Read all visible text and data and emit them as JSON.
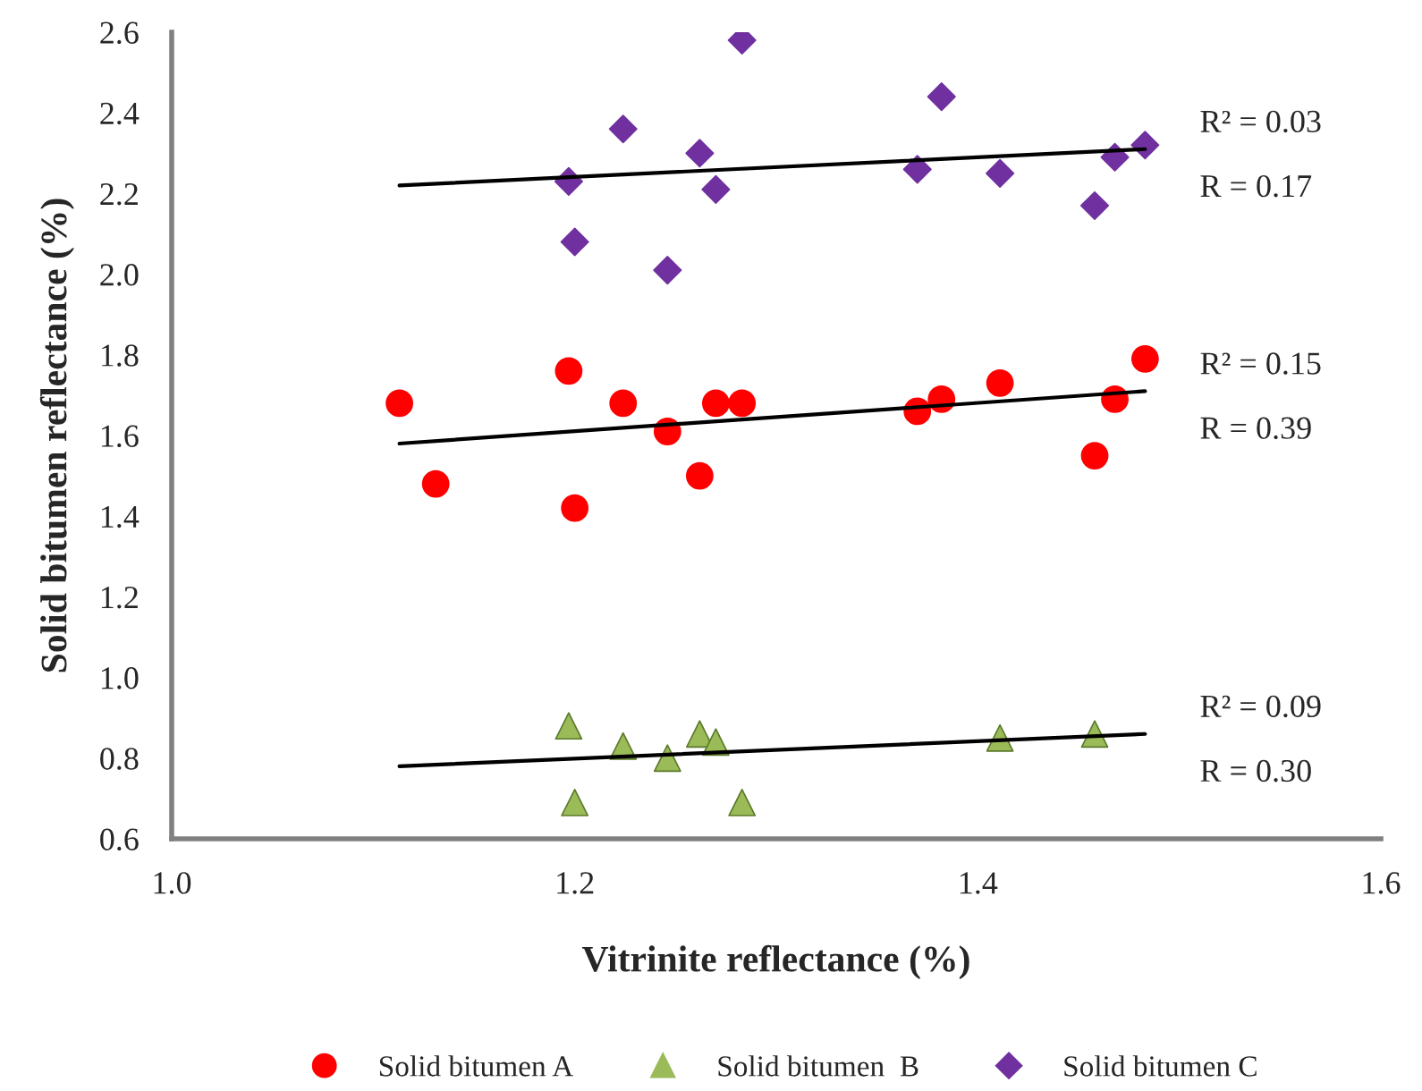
{
  "chart_data": {
    "type": "scatter",
    "xlabel": "Vitrinite reflectance (%)",
    "ylabel": "Solid bitumen reflectance (%)",
    "xlim": [
      1.0,
      1.6
    ],
    "xticks": [
      {
        "value": 1.0,
        "label": "1.0"
      },
      {
        "value": 1.2,
        "label": "1.2"
      },
      {
        "value": 1.4,
        "label": "1.4"
      },
      {
        "value": 1.6,
        "label": "1.6"
      }
    ],
    "ylim": [
      0.6,
      2.6
    ],
    "yticks": [
      {
        "value": 0.6,
        "label": "0.6"
      },
      {
        "value": 0.8,
        "label": "0.8"
      },
      {
        "value": 1.0,
        "label": "1.0"
      },
      {
        "value": 1.2,
        "label": "1.2"
      },
      {
        "value": 1.4,
        "label": "1.4"
      },
      {
        "value": 1.6,
        "label": "1.6"
      },
      {
        "value": 1.8,
        "label": "1.8"
      },
      {
        "value": 2.0,
        "label": "2.0"
      },
      {
        "value": 2.2,
        "label": "2.2"
      },
      {
        "value": 2.4,
        "label": "2.4"
      },
      {
        "value": 2.6,
        "label": "2.6"
      }
    ],
    "grid": false,
    "legend": "bottom",
    "series": [
      {
        "name": "Solid bitumen A",
        "color": "#ff0000",
        "marker": "circle",
        "x": [
          1.113,
          1.131,
          1.197,
          1.2,
          1.224,
          1.246,
          1.262,
          1.27,
          1.283,
          1.37,
          1.382,
          1.411,
          1.458,
          1.468,
          1.483
        ],
        "values": [
          1.68,
          1.48,
          1.76,
          1.42,
          1.68,
          1.61,
          1.5,
          1.68,
          1.68,
          1.66,
          1.69,
          1.73,
          1.55,
          1.69,
          1.79
        ]
      },
      {
        "name": "Solid bitumen  B",
        "color": "#9bbb59",
        "marker": "triangle",
        "x": [
          1.197,
          1.2,
          1.224,
          1.246,
          1.262,
          1.27,
          1.283,
          1.411,
          1.458
        ],
        "values": [
          0.88,
          0.69,
          0.83,
          0.8,
          0.86,
          0.84,
          0.69,
          0.85,
          0.86
        ]
      },
      {
        "name": "Solid bitumen C",
        "color": "#7030a0",
        "marker": "diamond",
        "x": [
          1.197,
          1.2,
          1.224,
          1.246,
          1.262,
          1.27,
          1.283,
          1.37,
          1.382,
          1.411,
          1.458,
          1.468,
          1.483
        ],
        "values": [
          2.23,
          2.08,
          2.36,
          2.01,
          2.3,
          2.21,
          2.58,
          2.26,
          2.44,
          2.25,
          2.17,
          2.29,
          2.32
        ]
      },
      {
        "type": "line",
        "color": "#000000",
        "marker": "none",
        "x": [
          1.113,
          1.483
        ],
        "values": [
          2.22,
          2.31
        ]
      },
      {
        "type": "line",
        "color": "#000000",
        "marker": "none",
        "x": [
          1.113,
          1.483
        ],
        "values": [
          1.58,
          1.71
        ]
      },
      {
        "type": "line",
        "color": "#000000",
        "marker": "none",
        "x": [
          1.113,
          1.483
        ],
        "values": [
          0.78,
          0.86
        ]
      }
    ],
    "annotations": [
      "R² = 0.03",
      "R = 0.17",
      "R² = 0.15",
      "R = 0.39",
      "R² = 0.09",
      "R = 0.30"
    ]
  }
}
